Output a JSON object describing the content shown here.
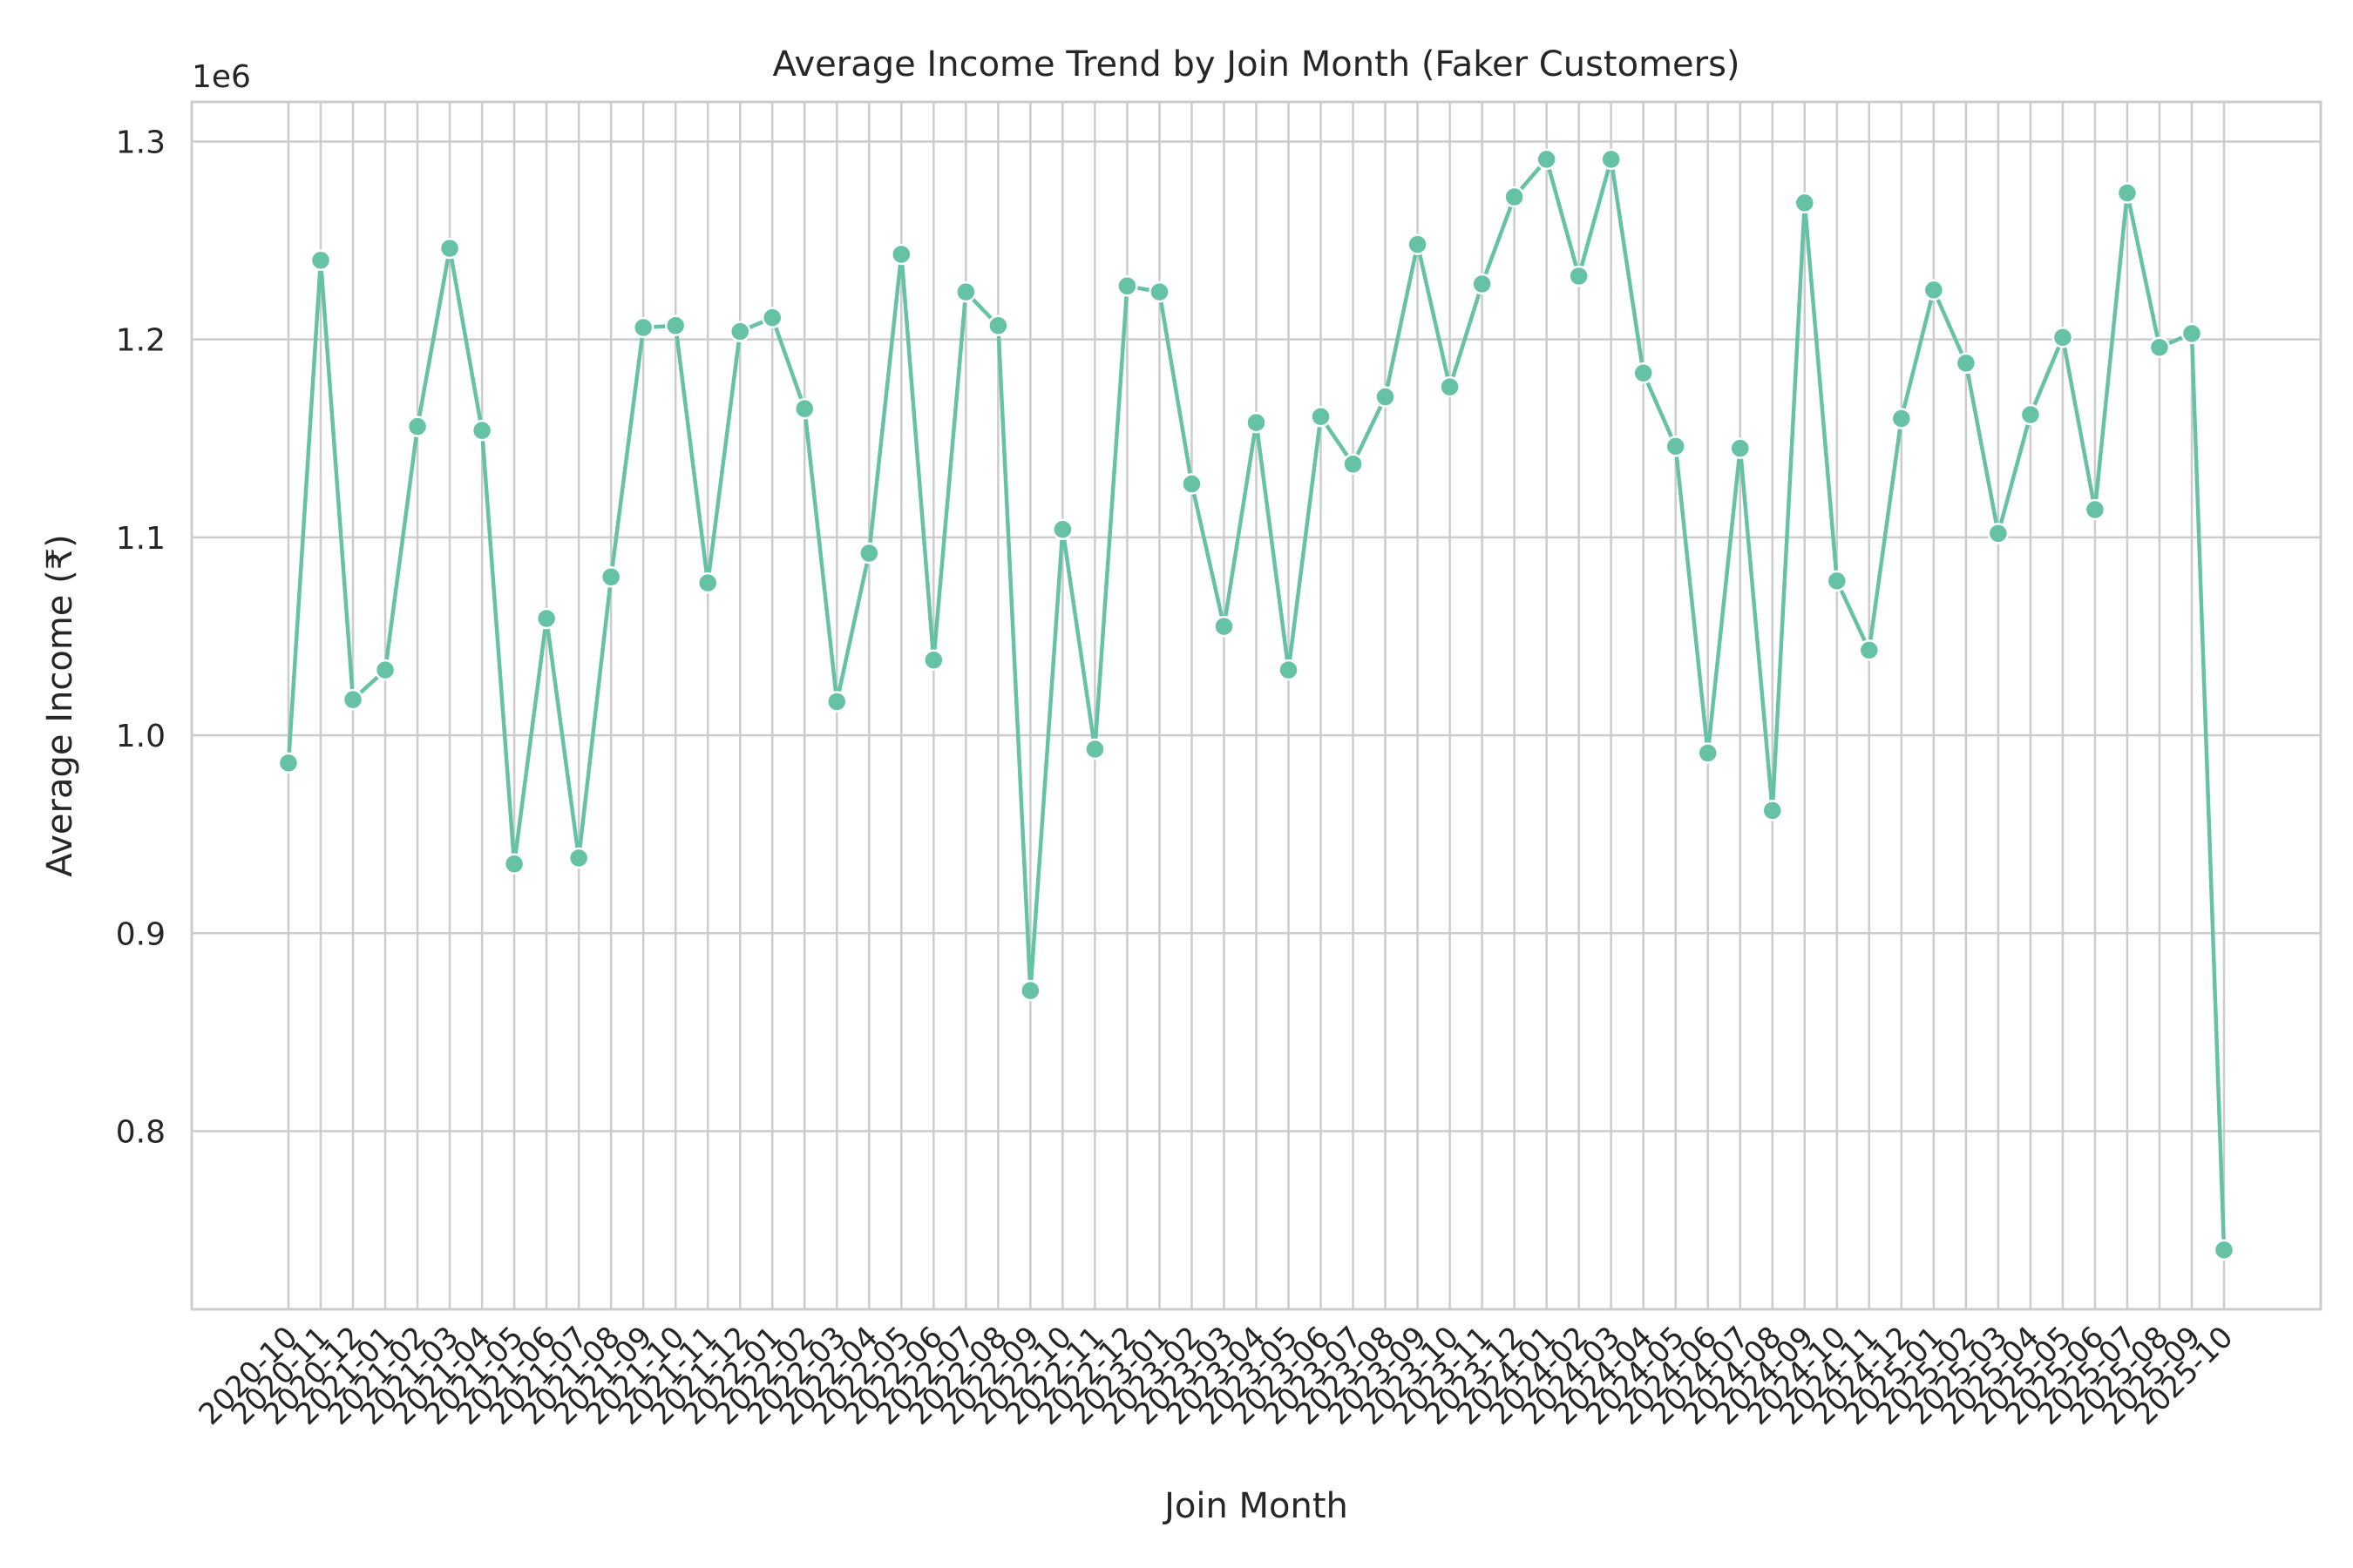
{
  "chart_data": {
    "type": "line",
    "title": "Average Income Trend by Join Month (Faker Customers)",
    "xlabel": "Join Month",
    "ylabel": "Average Income (₹)",
    "y_offset_label": "1e6",
    "ylim": [
      710000,
      1320000
    ],
    "yticks": [
      800000,
      900000,
      1000000,
      1100000,
      1200000,
      1300000
    ],
    "ytick_labels": [
      "0.8",
      "0.9",
      "1.0",
      "1.1",
      "1.2",
      "1.3"
    ],
    "grid": true,
    "line_color": "#66c2a5",
    "categories": [
      "2020-10",
      "2020-11",
      "2020-12",
      "2021-01",
      "2021-02",
      "2021-03",
      "2021-04",
      "2021-05",
      "2021-06",
      "2021-07",
      "2021-08",
      "2021-09",
      "2021-10",
      "2021-11",
      "2021-12",
      "2022-01",
      "2022-02",
      "2022-03",
      "2022-04",
      "2022-05",
      "2022-06",
      "2022-07",
      "2022-08",
      "2022-09",
      "2022-10",
      "2022-11",
      "2022-12",
      "2023-01",
      "2023-02",
      "2023-03",
      "2023-04",
      "2023-05",
      "2023-06",
      "2023-07",
      "2023-08",
      "2023-09",
      "2023-10",
      "2023-11",
      "2023-12",
      "2024-01",
      "2024-02",
      "2024-03",
      "2024-04",
      "2024-05",
      "2024-06",
      "2024-07",
      "2024-08",
      "2024-09",
      "2024-10",
      "2024-11",
      "2024-12",
      "2025-01",
      "2025-02",
      "2025-03",
      "2025-04",
      "2025-05",
      "2025-06",
      "2025-07",
      "2025-08",
      "2025-09",
      "2025-10"
    ],
    "values": [
      986000,
      1240000,
      1018000,
      1033000,
      1156000,
      1246000,
      1154000,
      935000,
      1059000,
      938000,
      1080000,
      1206000,
      1207000,
      1077000,
      1204000,
      1211000,
      1165000,
      1017000,
      1092000,
      1243000,
      1038000,
      1224000,
      1207000,
      871000,
      1104000,
      993000,
      1227000,
      1224000,
      1127000,
      1055000,
      1158000,
      1033000,
      1161000,
      1137000,
      1171000,
      1248000,
      1176000,
      1228000,
      1272000,
      1291000,
      1232000,
      1291000,
      1183000,
      1146000,
      991000,
      1145000,
      962000,
      1269000,
      1078000,
      1043000,
      1160000,
      1225000,
      1188000,
      1102000,
      1162000,
      1201000,
      1114000,
      1274000,
      1196000,
      1203000,
      740000
    ]
  }
}
